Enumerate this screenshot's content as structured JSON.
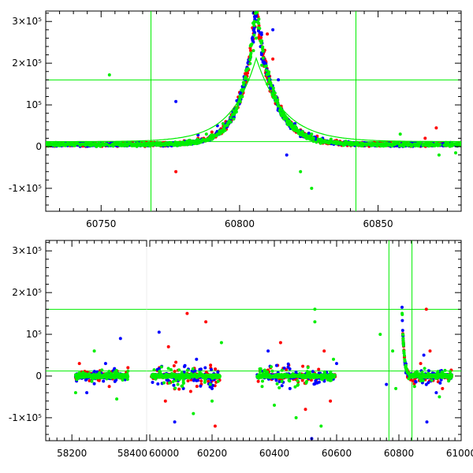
{
  "chart_data": [
    {
      "type": "scatter",
      "panel": "top",
      "xlim": [
        60730,
        60880
      ],
      "ylim": [
        -155000,
        325000
      ],
      "x_ticks": [
        {
          "value": 60750,
          "label": "60750"
        },
        {
          "value": 60800,
          "label": "60800"
        },
        {
          "value": 60850,
          "label": "60850"
        }
      ],
      "y_ticks": [
        {
          "value": 300000,
          "label": "3×10⁵"
        },
        {
          "value": 200000,
          "label": "2×10⁵"
        },
        {
          "value": 100000,
          "label": "10⁵"
        },
        {
          "value": 0,
          "label": "0"
        },
        {
          "value": -100000,
          "label": "-1×10⁵"
        }
      ],
      "reference_lines": {
        "horizontal": [
          160000,
          12000
        ],
        "vertical": [
          60768,
          60842
        ]
      },
      "model_curve": {
        "t0": 60806,
        "amplitude": 200000,
        "tau_rise": 9,
        "tau_fall": 10
      },
      "series": [
        {
          "color": "#ff0000",
          "points": [
            [
              60740,
              4000
            ],
            [
              60755,
              6000
            ],
            [
              60770,
              9000
            ],
            [
              60780,
              14000
            ],
            [
              60785,
              20000
            ],
            [
              60790,
              35000
            ],
            [
              60795,
              60000
            ],
            [
              60798,
              90000
            ],
            [
              60800,
              130000
            ],
            [
              60802,
              175000
            ],
            [
              60804,
              230000
            ],
            [
              60805,
              280000
            ],
            [
              60806,
              318000
            ],
            [
              60807,
              290000
            ],
            [
              60808,
              240000
            ],
            [
              60809,
              200000
            ],
            [
              60810,
              165000
            ],
            [
              60812,
              120000
            ],
            [
              60815,
              85000
            ],
            [
              60818,
              60000
            ],
            [
              60822,
              40000
            ],
            [
              60828,
              25000
            ],
            [
              60835,
              15000
            ],
            [
              60845,
              8000
            ],
            [
              60860,
              5000
            ],
            [
              60875,
              3000
            ],
            [
              60777,
              -60000
            ],
            [
              60810,
              270000
            ],
            [
              60812,
              210000
            ],
            [
              60867,
              20000
            ],
            [
              60871,
              45000
            ]
          ]
        },
        {
          "color": "#0000ff",
          "points": [
            [
              60745,
              2000
            ],
            [
              60760,
              3000
            ],
            [
              60775,
              8000
            ],
            [
              60777,
              108000
            ],
            [
              60785,
              28000
            ],
            [
              60792,
              50000
            ],
            [
              60799,
              110000
            ],
            [
              60803,
              200000
            ],
            [
              60805,
              320000
            ],
            [
              60806,
              300000
            ],
            [
              60808,
              210000
            ],
            [
              60811,
              140000
            ],
            [
              60814,
              95000
            ],
            [
              60820,
              55000
            ],
            [
              60825,
              32000
            ],
            [
              60830,
              20000
            ],
            [
              60840,
              10000
            ],
            [
              60852,
              5000
            ],
            [
              60865,
              3000
            ],
            [
              60876,
              1000
            ],
            [
              60812,
              280000
            ],
            [
              60814,
              160000
            ],
            [
              60817,
              -20000
            ],
            [
              60862,
              5000
            ],
            [
              60798,
              70000
            ]
          ]
        },
        {
          "color": "#00ee00",
          "points": [
            [
              60735,
              2000
            ],
            [
              60750,
              4000
            ],
            [
              60753,
              172000
            ],
            [
              60765,
              6000
            ],
            [
              60782,
              15000
            ],
            [
              60788,
              30000
            ],
            [
              60794,
              55000
            ],
            [
              60798,
              85000
            ],
            [
              60801,
              120000
            ],
            [
              60803,
              160000
            ],
            [
              60805,
              230000
            ],
            [
              60806,
              260000
            ],
            [
              60808,
              195000
            ],
            [
              60810,
              150000
            ],
            [
              60813,
              110000
            ],
            [
              60816,
              80000
            ],
            [
              60820,
              50000
            ],
            [
              60826,
              30000
            ],
            [
              60833,
              18000
            ],
            [
              60842,
              10000
            ],
            [
              60855,
              5000
            ],
            [
              60870,
              2000
            ],
            [
              60878,
              -15000
            ],
            [
              60822,
              -60000
            ],
            [
              60826,
              -100000
            ],
            [
              60858,
              30000
            ],
            [
              60872,
              -20000
            ]
          ]
        }
      ]
    },
    {
      "type": "scatter",
      "panel": "bottom",
      "segments": [
        {
          "xlim": [
            58130,
            58400
          ],
          "x_ticks": [
            {
              "value": 58200,
              "label": "58200"
            },
            {
              "value": 58400,
              "label": "58400"
            }
          ]
        },
        {
          "xlim": [
            60000,
            61000
          ],
          "x_ticks": [
            {
              "value": 60000,
              "label": "60000"
            },
            {
              "value": 60200,
              "label": "60200"
            },
            {
              "value": 60400,
              "label": "60400"
            },
            {
              "value": 60600,
              "label": "60600"
            },
            {
              "value": 60800,
              "label": "60800"
            },
            {
              "value": 61000,
              "label": "61000"
            }
          ]
        }
      ],
      "ylim": [
        -155000,
        325000
      ],
      "y_ticks": [
        {
          "value": 300000,
          "label": "3×10⁵"
        },
        {
          "value": 200000,
          "label": "2×10⁵"
        },
        {
          "value": 100000,
          "label": "10⁵"
        },
        {
          "value": 0,
          "label": "0"
        },
        {
          "value": -100000,
          "label": "-1×10⁵"
        }
      ],
      "reference_lines": {
        "horizontal": [
          160000,
          12000
        ],
        "vertical": [
          60768,
          60842
        ]
      },
      "clusters": [
        {
          "center": 58280,
          "width": 140,
          "spread": 20000
        },
        {
          "center": 60115,
          "width": 220,
          "spread": 40000
        },
        {
          "center": 60470,
          "width": 250,
          "spread": 40000
        },
        {
          "center": 60890,
          "width": 160,
          "spread": 25000
        }
      ],
      "series": [
        {
          "color": "#ff0000",
          "points": [
            [
              58220,
              30000
            ],
            [
              58300,
              -25000
            ],
            [
              58350,
              20000
            ],
            [
              60050,
              -60000
            ],
            [
              60120,
              150000
            ],
            [
              60180,
              130000
            ],
            [
              60210,
              -120000
            ],
            [
              60060,
              70000
            ],
            [
              60420,
              80000
            ],
            [
              60500,
              -80000
            ],
            [
              60560,
              60000
            ],
            [
              60580,
              -60000
            ],
            [
              60900,
              60000
            ],
            [
              60940,
              -30000
            ],
            [
              60870,
              30000
            ],
            [
              60888,
              160000
            ]
          ]
        },
        {
          "color": "#0000ff",
          "points": [
            [
              58240,
              -40000
            ],
            [
              58330,
              90000
            ],
            [
              58290,
              30000
            ],
            [
              60030,
              105000
            ],
            [
              60080,
              -110000
            ],
            [
              60150,
              40000
            ],
            [
              60200,
              -30000
            ],
            [
              60380,
              60000
            ],
            [
              60450,
              -30000
            ],
            [
              60520,
              -150000
            ],
            [
              60600,
              30000
            ],
            [
              60760,
              -20000
            ],
            [
              60880,
              50000
            ],
            [
              60920,
              -40000
            ],
            [
              60890,
              -110000
            ]
          ]
        },
        {
          "color": "#00ee00",
          "points": [
            [
              58210,
              -40000
            ],
            [
              58260,
              60000
            ],
            [
              58320,
              -55000
            ],
            [
              60090,
              -20000
            ],
            [
              60140,
              -90000
            ],
            [
              60200,
              -60000
            ],
            [
              60230,
              80000
            ],
            [
              60400,
              -70000
            ],
            [
              60470,
              -100000
            ],
            [
              60530,
              160000
            ],
            [
              60530,
              130000
            ],
            [
              60550,
              -120000
            ],
            [
              60590,
              40000
            ],
            [
              60740,
              100000
            ],
            [
              60780,
              60000
            ],
            [
              60790,
              -30000
            ],
            [
              60850,
              -25000
            ],
            [
              60930,
              -50000
            ]
          ]
        }
      ]
    }
  ]
}
